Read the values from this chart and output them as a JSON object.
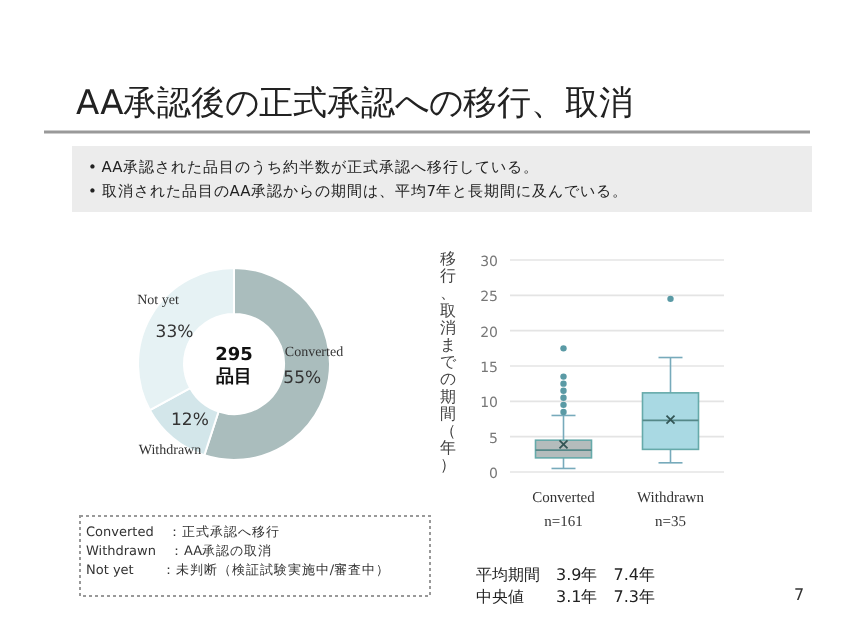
{
  "chart_data": [
    {
      "type": "donut",
      "title": "AA承認後の正式承認への移行、取消",
      "subtitle": "• AA承認された品目のうち約半数が正式承認へ移行している。\n• 取消された品目のAA承認からの期間は、平均7年と長期間に及んでいる。",
      "categories": [
        "Converted",
        "Withdrawn",
        "Not yet"
      ],
      "values": [
        55,
        12,
        33
      ],
      "value_labels": [
        "55%",
        "12%",
        "33%"
      ],
      "colors": [
        "#aabdbd",
        "#d3e6ea",
        "#e6f2f4"
      ],
      "annotations": [
        "295\n品目",
        "Converted　：正式承認へ移行\nWithdrawn　：AA承認の取消\nNot yet　　：未判断（検証試験実施中/審査中）",
        "7"
      ]
    },
    {
      "type": "box",
      "ylabel": "移行、取消までの期間（年）",
      "categories": [
        "Converted\nn=161",
        "Withdrawn\nn=35"
      ],
      "colors": [
        "#b4bcbc",
        "#a9d9e3"
      ],
      "boxes": [
        {
          "low": 0.5,
          "q1": 2,
          "median": 3.1,
          "q3": 4.5,
          "high": 8,
          "mean": 3.9,
          "outliers": [
            8.5,
            9.5,
            10.5,
            11.5,
            12.5,
            13.5,
            17.5
          ]
        },
        {
          "low": 1.3,
          "q1": 3.2,
          "median": 7.3,
          "q3": 11.2,
          "high": 16.2,
          "mean": 7.4,
          "outliers": [
            24.5
          ]
        }
      ],
      "ylim": [
        0,
        30
      ],
      "yticks": [
        0,
        5,
        10,
        15,
        20,
        25,
        30
      ],
      "grid": "y",
      "annotations": [
        "平均期間　3.9年　7.4年",
        "中央値　　3.1年　7.3年"
      ]
    }
  ]
}
